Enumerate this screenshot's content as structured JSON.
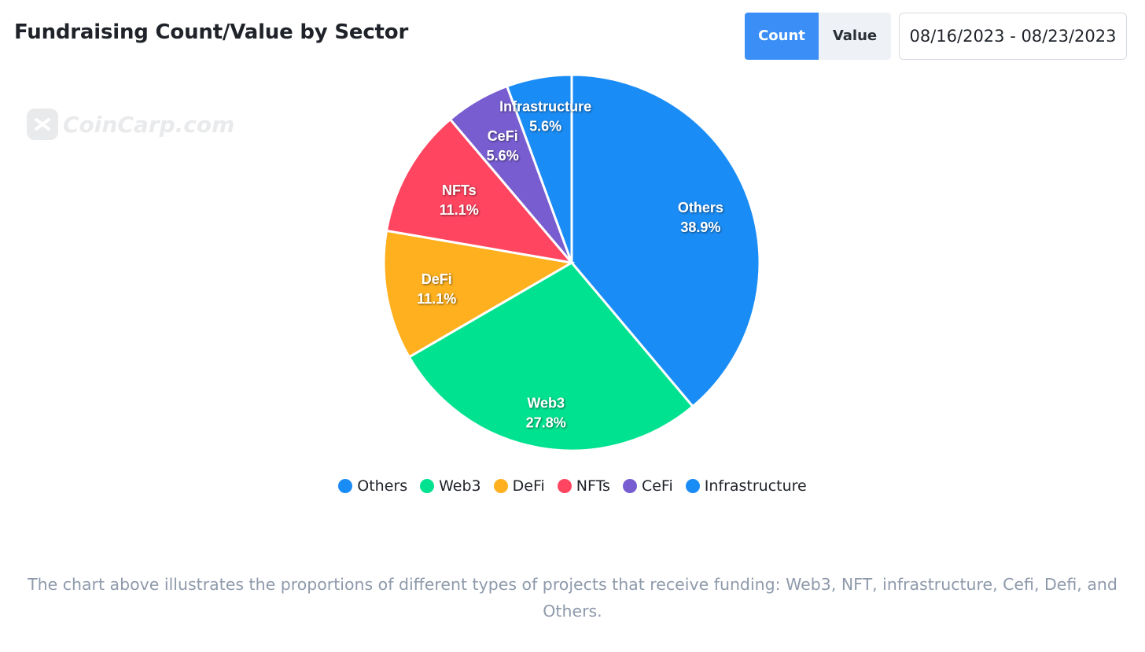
{
  "header": {
    "title": "Fundraising Count/Value by Sector",
    "toggle": {
      "count_label": "Count",
      "value_label": "Value",
      "selected": "Count"
    },
    "date_range": "08/16/2023 - 08/23/2023"
  },
  "watermark": {
    "text": "CoinCarp.com",
    "icon": "coincarp-logo-icon"
  },
  "colors": {
    "accent": "#3a8ef6",
    "Others": "#1a8cf5",
    "Web3": "#00e28f",
    "DeFi": "#feb01e",
    "NFTs": "#ff4560",
    "CeFi": "#775dd0",
    "Infrastructure": "#1a8cf5"
  },
  "chart_data": {
    "type": "pie",
    "title": "",
    "categories": [
      "Others",
      "Web3",
      "DeFi",
      "NFTs",
      "CeFi",
      "Infrastructure"
    ],
    "values": [
      38.9,
      27.8,
      11.1,
      11.1,
      5.6,
      5.6
    ],
    "value_labels": [
      "38.9%",
      "27.8%",
      "11.1%",
      "11.1%",
      "5.6%",
      "5.6%"
    ],
    "legend_position": "bottom-center",
    "start_angle": "12 o'clock, clockwise"
  },
  "caption": "The chart above illustrates the proportions of different types of projects that receive funding: Web3, NFT, infrastructure, Cefi, Defi, and Others."
}
